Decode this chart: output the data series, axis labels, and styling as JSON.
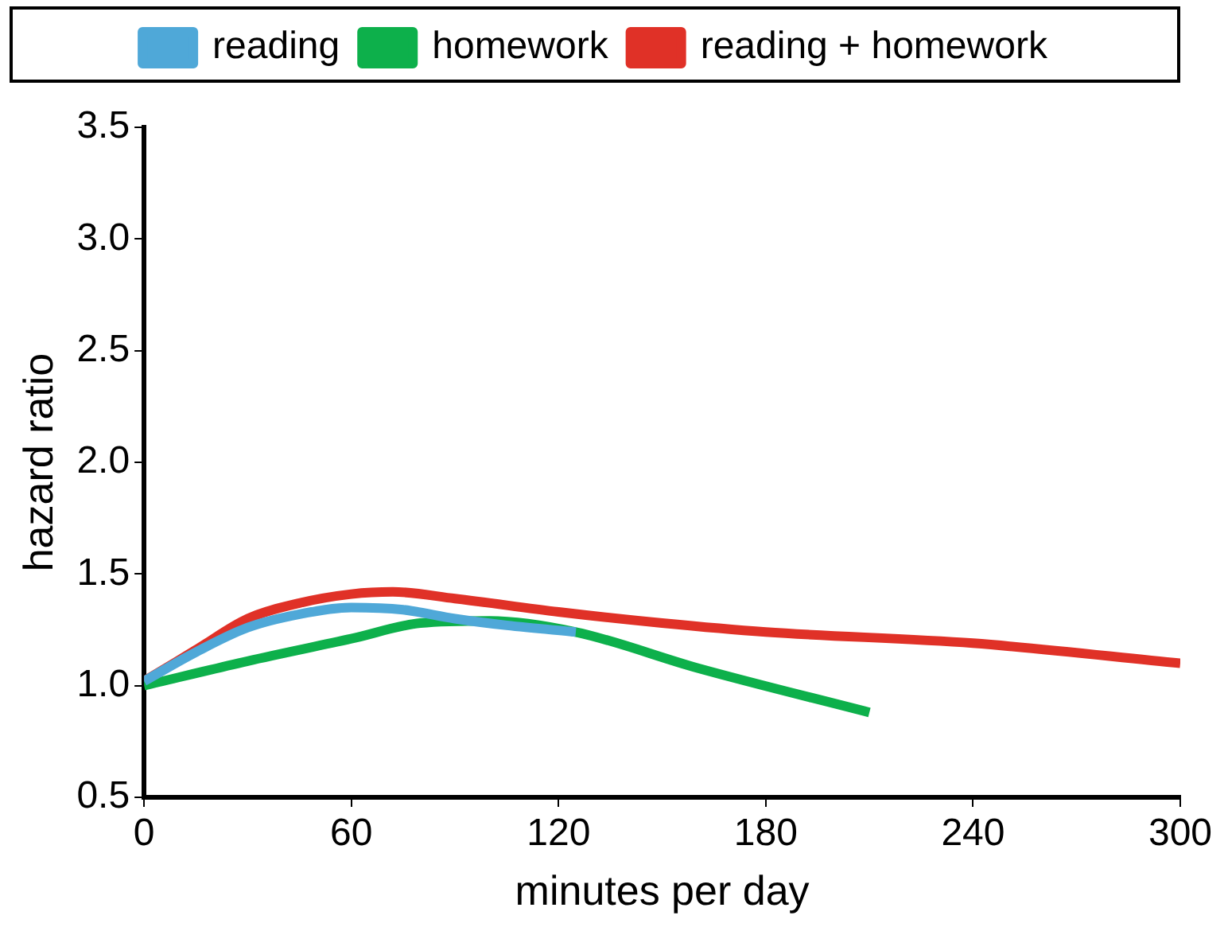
{
  "chart_data": {
    "type": "line",
    "xlabel": "minutes per day",
    "ylabel": "hazard ratio",
    "xlim": [
      0,
      300
    ],
    "xticks": [
      0,
      60,
      120,
      180,
      240,
      300
    ],
    "ylim": [
      0.5,
      3.5
    ],
    "yticks": [
      0.5,
      {
        "value": 1,
        "label": "1.0"
      },
      1.5,
      {
        "value": 2,
        "label": "2.0"
      },
      2.5,
      {
        "value": 3,
        "label": "3.0"
      },
      3.5
    ],
    "grid": false,
    "legend": "top",
    "marker": "none",
    "line_style": "solid",
    "series": [
      {
        "name": "reading",
        "color": "#4fa8d8",
        "x": [
          0,
          15,
          30,
          45,
          60,
          75,
          90,
          105,
          125
        ],
        "values": [
          1.02,
          1.15,
          1.26,
          1.32,
          1.35,
          1.34,
          1.3,
          1.27,
          1.24
        ]
      },
      {
        "name": "homework",
        "color": "#0db04b",
        "x": [
          0,
          30,
          60,
          80,
          100,
          125,
          160,
          210
        ],
        "values": [
          1.0,
          1.11,
          1.21,
          1.28,
          1.29,
          1.24,
          1.08,
          0.88
        ]
      },
      {
        "name": "reading + homework",
        "color": "#e03127",
        "x": [
          0,
          15,
          30,
          45,
          60,
          72,
          90,
          120,
          150,
          180,
          240,
          300
        ],
        "values": [
          1.02,
          1.16,
          1.3,
          1.37,
          1.41,
          1.42,
          1.39,
          1.33,
          1.28,
          1.24,
          1.19,
          1.1
        ]
      }
    ]
  }
}
